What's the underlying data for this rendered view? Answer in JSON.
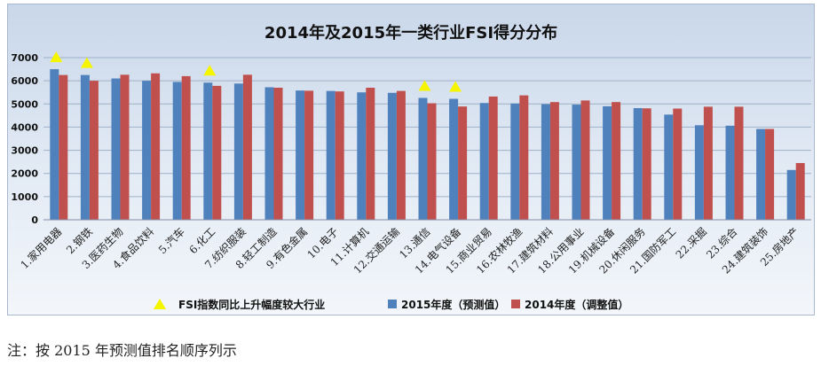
{
  "chart_data": {
    "type": "bar",
    "title": "2014年及2015年一类行业FSI得分分布",
    "xlabel": "",
    "ylabel": "",
    "ylim": [
      0,
      7000
    ],
    "yticks": [
      0,
      1000,
      2000,
      3000,
      4000,
      5000,
      6000,
      7000
    ],
    "grid": true,
    "legend_position": "bottom",
    "categories": [
      "1.家用电器",
      "2.钢铁",
      "3.医药生物",
      "4.食品饮料",
      "5.汽车",
      "6.化工",
      "7.纺织服装",
      "8.轻工制造",
      "9.有色金属",
      "10.电子",
      "11.计算机",
      "12.交通运输",
      "13.通信",
      "14.电气设备",
      "15.商业贸易",
      "16.农林牧渔",
      "17.建筑材料",
      "18.公用事业",
      "19.机械设备",
      "20.休闲服务",
      "21.国防军工",
      "22.采掘",
      "23.综合",
      "24.建筑装饰",
      "25.房地产"
    ],
    "series": [
      {
        "name": "2015年度（预测值）",
        "color": "#4f81bd",
        "values": [
          6500,
          6250,
          6100,
          6000,
          5950,
          5920,
          5880,
          5720,
          5580,
          5560,
          5500,
          5480,
          5260,
          5220,
          5040,
          5020,
          4990,
          4970,
          4900,
          4820,
          4540,
          4080,
          4060,
          3920,
          2150
        ]
      },
      {
        "name": "2014年度（调整值）",
        "color": "#c0504d",
        "values": [
          6250,
          6000,
          6260,
          6320,
          6200,
          5780,
          6260,
          5700,
          5570,
          5540,
          5700,
          5560,
          5030,
          4890,
          5320,
          5370,
          5080,
          5150,
          5080,
          4810,
          4800,
          4880,
          4880,
          3920,
          2450
        ]
      }
    ],
    "markers": {
      "name": "FSI指数同比上升幅度较大行业",
      "color": "#f5f500",
      "categories": [
        "1.家用电器",
        "2.钢铁",
        "6.化工",
        "13.通信",
        "14.电气设备"
      ]
    }
  },
  "footnote": "注：按 2015 年预测值排名顺序列示"
}
